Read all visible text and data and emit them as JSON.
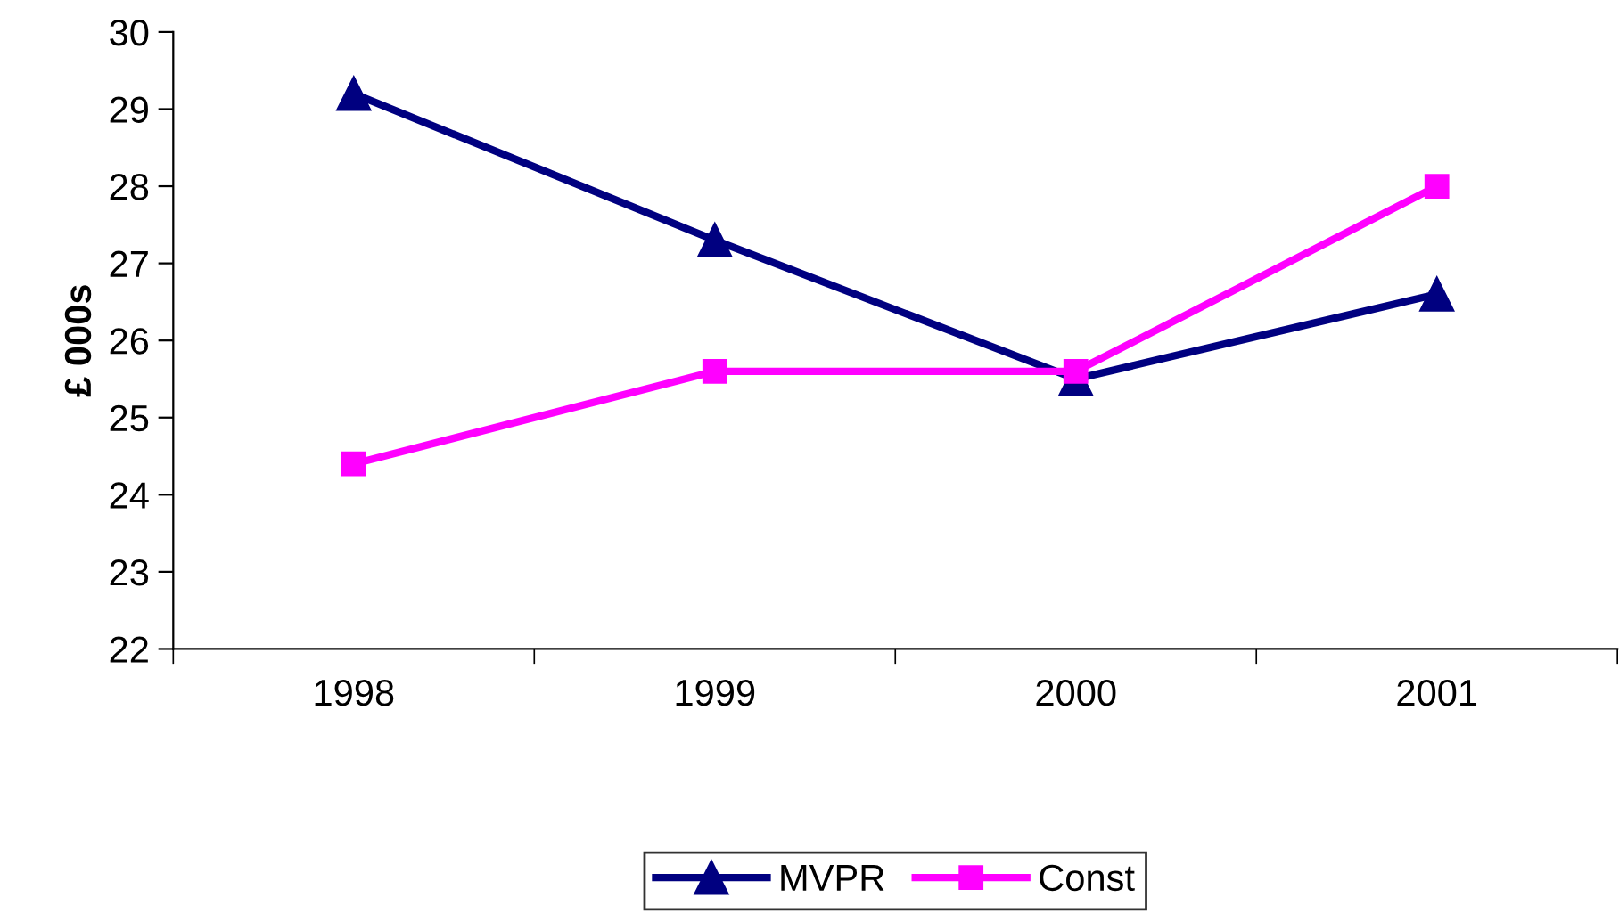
{
  "chart_data": {
    "type": "line",
    "ylabel": "£ 000s",
    "categories": [
      "1998",
      "1999",
      "2000",
      "2001"
    ],
    "series": [
      {
        "name": "MVPR",
        "color": "#000080",
        "marker": "triangle",
        "values": [
          29.2,
          27.3,
          25.5,
          26.6
        ]
      },
      {
        "name": "Const",
        "color": "#ff00ff",
        "marker": "square",
        "values": [
          24.4,
          25.6,
          25.6,
          28.0
        ]
      }
    ],
    "ylim": [
      22,
      30
    ],
    "yticks": [
      22,
      23,
      24,
      25,
      26,
      27,
      28,
      29,
      30
    ],
    "grid": false,
    "legend": "bottom",
    "line_style": "solid"
  }
}
